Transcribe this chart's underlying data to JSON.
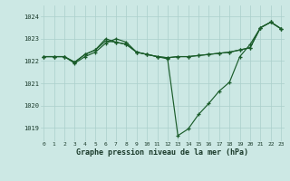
{
  "xlabel": "Graphe pression niveau de la mer (hPa)",
  "bg_color": "#cce8e4",
  "grid_color": "#aacfcb",
  "line_color": "#1a5c2a",
  "ylim": [
    1018.4,
    1024.5
  ],
  "xlim": [
    -0.3,
    23.3
  ],
  "yticks": [
    1019,
    1020,
    1021,
    1022,
    1023,
    1024
  ],
  "xticks": [
    0,
    1,
    2,
    3,
    4,
    5,
    6,
    7,
    8,
    9,
    10,
    11,
    12,
    13,
    14,
    15,
    16,
    17,
    18,
    19,
    20,
    21,
    22,
    23
  ],
  "series1": [
    1022.2,
    1022.2,
    1022.2,
    1021.9,
    1022.2,
    1022.4,
    1022.8,
    1023.0,
    1022.85,
    1022.4,
    1022.3,
    1022.2,
    1022.1,
    1018.65,
    1018.95,
    1019.6,
    1020.1,
    1020.65,
    1021.05,
    1022.2,
    1022.75,
    1023.5,
    1023.75,
    1023.45
  ],
  "series2": [
    1022.2,
    1022.2,
    1022.2,
    1021.95,
    1022.3,
    1022.5,
    1023.0,
    1022.85,
    1022.75,
    1022.4,
    1022.3,
    1022.2,
    1022.15,
    1022.2,
    1022.2,
    1022.25,
    1022.3,
    1022.35,
    1022.4,
    1022.5,
    1022.6,
    1023.5,
    1023.75,
    1023.45
  ],
  "series3": [
    1022.2,
    1022.2,
    1022.2,
    1021.95,
    1022.3,
    1022.5,
    1022.9,
    1022.85,
    1022.75,
    1022.4,
    1022.3,
    1022.2,
    1022.15,
    1022.2,
    1022.2,
    1022.25,
    1022.3,
    1022.35,
    1022.4,
    1022.5,
    1022.6,
    1023.5,
    1023.75,
    1023.45
  ]
}
